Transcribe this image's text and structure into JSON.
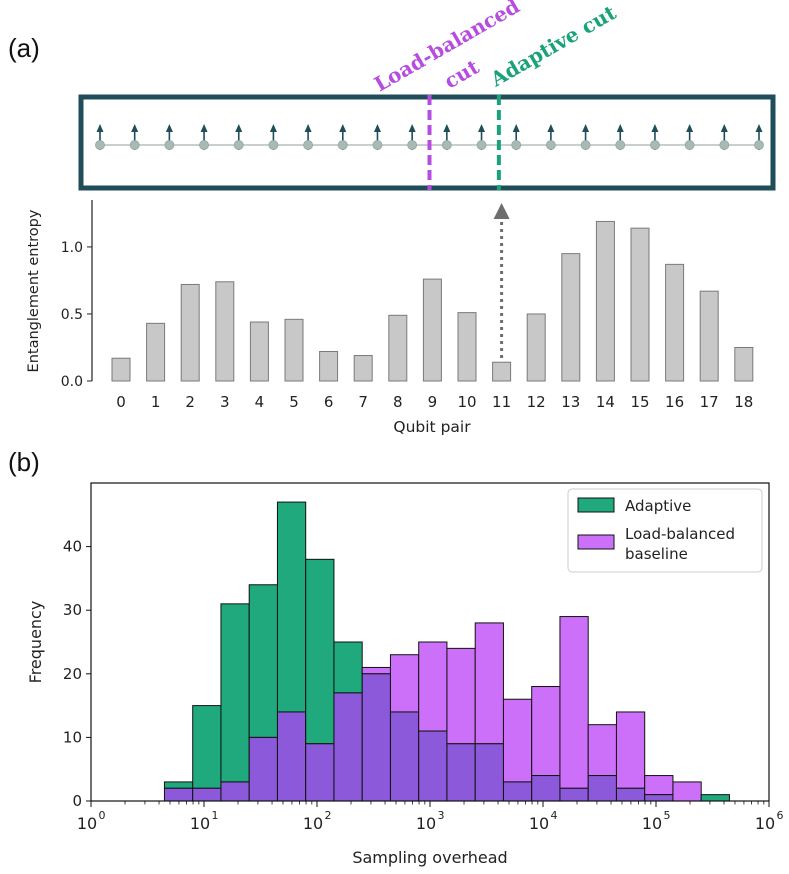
{
  "panels": {
    "a_label": "(a)",
    "b_label": "(b)"
  },
  "chain": {
    "num_qubits": 20,
    "load_balanced_cut_after_pair": 9,
    "adaptive_cut_after_pair": 11,
    "load_balanced_label_line1": "Load-balanced",
    "load_balanced_label_line2": "cut",
    "adaptive_label": "Adaptive cut",
    "colors": {
      "frame": "#1f4e5a",
      "spin": "#1f4e5a",
      "qubit": "#a9b9b6",
      "load_balanced": "#b64de0",
      "adaptive": "#1aa37a",
      "arrow": "#6e6e6e"
    }
  },
  "chart_data": [
    {
      "type": "bar",
      "title": "",
      "xlabel": "Qubit pair",
      "ylabel": "Entanglement entropy",
      "categories": [
        "0",
        "1",
        "2",
        "3",
        "4",
        "5",
        "6",
        "7",
        "8",
        "9",
        "10",
        "11",
        "12",
        "13",
        "14",
        "15",
        "16",
        "17",
        "18"
      ],
      "values": [
        0.17,
        0.43,
        0.72,
        0.74,
        0.44,
        0.46,
        0.22,
        0.19,
        0.49,
        0.76,
        0.51,
        0.14,
        0.5,
        0.95,
        1.19,
        1.14,
        0.87,
        0.67,
        0.25
      ],
      "ylim": [
        0,
        1.35
      ],
      "yticks": [
        "0.0",
        "0.5",
        "1.0"
      ],
      "bar_color": "#c8c8c8"
    },
    {
      "type": "histogram",
      "title": "",
      "xlabel": "Sampling overhead",
      "ylabel": "Frequency",
      "xscale": "log",
      "xlim_log10": [
        0,
        6
      ],
      "ylim": [
        0,
        50
      ],
      "yticks": [
        "0",
        "10",
        "20",
        "30",
        "40"
      ],
      "xtick_base": "10",
      "xtick_exponents": [
        "0",
        "1",
        "2",
        "3",
        "4",
        "5",
        "6"
      ],
      "bin_edges_log10": [
        0.65,
        0.9,
        1.15,
        1.4,
        1.65,
        1.9,
        2.15,
        2.4,
        2.65,
        2.9,
        3.15,
        3.4,
        3.65,
        3.9,
        4.15,
        4.4,
        4.65,
        4.9,
        5.15,
        5.4,
        5.65
      ],
      "legend": {
        "position": "top-right",
        "adaptive_label": "Adaptive",
        "lb_label_line1": "Load-balanced",
        "lb_label_line2": "baseline"
      },
      "series": [
        {
          "name": "Adaptive",
          "color": "#1fa97d",
          "values": [
            3,
            15,
            31,
            34,
            47,
            38,
            25,
            20,
            14,
            11,
            9,
            9,
            3,
            4,
            2,
            4,
            2,
            1,
            0,
            1
          ]
        },
        {
          "name": "Load-balanced baseline",
          "color": "#cc70fa",
          "values": [
            2,
            2,
            3,
            10,
            14,
            9,
            17,
            21,
            23,
            25,
            24,
            28,
            16,
            18,
            29,
            12,
            14,
            4,
            3,
            0
          ]
        }
      ],
      "overlap_color": "#8b59d9"
    }
  ]
}
